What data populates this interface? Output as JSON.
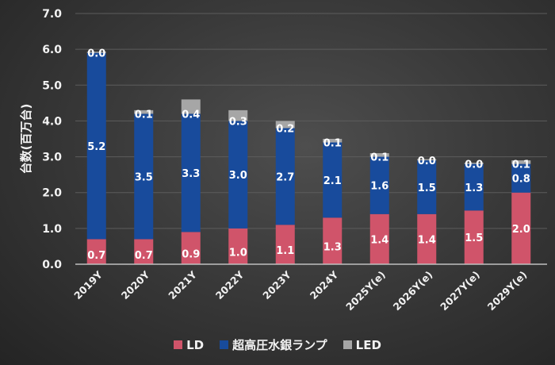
{
  "chart_data": {
    "type": "bar",
    "stacked": true,
    "title": "",
    "xlabel": "",
    "ylabel": "台数(百万台)",
    "ylim": [
      0,
      7.0
    ],
    "yticks": [
      "0.0",
      "1.0",
      "2.0",
      "3.0",
      "4.0",
      "5.0",
      "6.0",
      "7.0"
    ],
    "grid": true,
    "legend_position": "bottom",
    "categories": [
      "2019Y",
      "2020Y",
      "2021Y",
      "2022Y",
      "2023Y",
      "2024Y",
      "2025Y(e)",
      "2026Y(e)",
      "2027Y(e)",
      "2029Y(e)"
    ],
    "series": [
      {
        "name": "LD",
        "color": "#d0546a",
        "values": [
          0.7,
          0.7,
          0.9,
          1.0,
          1.1,
          1.3,
          1.4,
          1.4,
          1.5,
          2.0
        ]
      },
      {
        "name": "超高圧水銀ランプ",
        "color": "#184b9c",
        "values": [
          5.2,
          3.5,
          3.3,
          3.0,
          2.7,
          2.1,
          1.6,
          1.5,
          1.3,
          0.8
        ]
      },
      {
        "name": "LED",
        "color": "#a6a6a6",
        "values": [
          0.0,
          0.1,
          0.4,
          0.3,
          0.2,
          0.1,
          0.1,
          0.0,
          0.0,
          0.1
        ]
      }
    ]
  }
}
